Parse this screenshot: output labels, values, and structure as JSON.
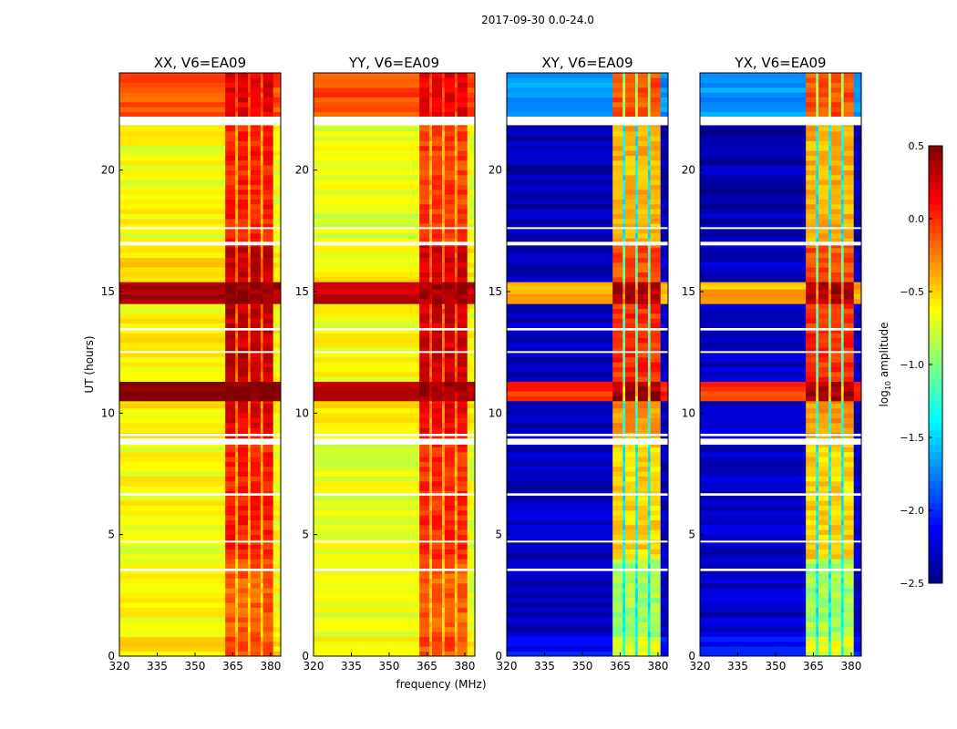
{
  "chart_data": {
    "type": "heatmap",
    "title": "2017-09-30 0.0-24.0",
    "xlabel": "frequency (MHz)",
    "ylabel": "UT (hours)",
    "xlim": [
      320,
      384
    ],
    "ylim": [
      0,
      24
    ],
    "xticks": [
      "320",
      "335",
      "350",
      "365",
      "380"
    ],
    "yticks": [
      "0",
      "5",
      "10",
      "15",
      "20"
    ],
    "colorbar": {
      "label": "log10 amplitude",
      "label_main": "log",
      "label_sub": "10",
      "label_rest": " amplitude",
      "range": [
        -2.5,
        0.5
      ],
      "ticks": [
        "0.5",
        "0.0",
        "−0.5",
        "−1.0",
        "−1.5",
        "−2.0",
        "−2.5"
      ],
      "colormap": "jet"
    },
    "freq_bands": [
      [
        320,
        362
      ],
      [
        362,
        366
      ],
      [
        366,
        367
      ],
      [
        367,
        371
      ],
      [
        371,
        372
      ],
      [
        372,
        376
      ],
      [
        376,
        377
      ],
      [
        377,
        381
      ],
      [
        381,
        384
      ]
    ],
    "band_kind": [
      "low",
      "high",
      "gap",
      "high",
      "gap",
      "high",
      "gap",
      "high",
      "low"
    ],
    "flagged_hours": [
      [
        21.85,
        22.2
      ],
      [
        8.7,
        8.95
      ],
      [
        9.05,
        9.15
      ],
      [
        16.9,
        17.05
      ],
      [
        3.5,
        3.6
      ],
      [
        6.6,
        6.7
      ],
      [
        13.4,
        13.5
      ],
      [
        12.5,
        12.55
      ],
      [
        17.6,
        17.65
      ],
      [
        4.7,
        4.75
      ]
    ],
    "panels": [
      {
        "title": "XX, V6=EA09",
        "segments": [
          {
            "t": [
              0,
              0.8
            ],
            "low": -0.5,
            "high": -0.1,
            "gap": -0.4
          },
          {
            "t": [
              0.8,
              4
            ],
            "low": -0.65,
            "high": -0.15,
            "gap": -0.5
          },
          {
            "t": [
              4,
              9
            ],
            "low": -0.65,
            "high": 0.05,
            "gap": -0.4
          },
          {
            "t": [
              9,
              10.5
            ],
            "low": -0.6,
            "high": 0.2,
            "gap": -0.3
          },
          {
            "t": [
              10.5,
              11.3
            ],
            "low": 0.5,
            "high": 0.5,
            "gap": 0.5
          },
          {
            "t": [
              11.3,
              14.5
            ],
            "low": -0.6,
            "high": 0.3,
            "gap": -0.2
          },
          {
            "t": [
              14.5,
              15.4
            ],
            "low": 0.4,
            "high": 0.45,
            "gap": 0.4
          },
          {
            "t": [
              15.4,
              17
            ],
            "low": -0.55,
            "high": 0.3,
            "gap": -0.2
          },
          {
            "t": [
              17,
              21.85
            ],
            "low": -0.65,
            "high": 0.05,
            "gap": -0.4
          },
          {
            "t": [
              22.2,
              24
            ],
            "low": -0.1,
            "high": 0.2,
            "gap": -0.1
          }
        ]
      },
      {
        "title": "YY, V6=EA09",
        "segments": [
          {
            "t": [
              0,
              0.8
            ],
            "low": -0.55,
            "high": -0.1,
            "gap": -0.4
          },
          {
            "t": [
              0.8,
              4
            ],
            "low": -0.7,
            "high": -0.15,
            "gap": -0.5
          },
          {
            "t": [
              4,
              9
            ],
            "low": -0.7,
            "high": 0.0,
            "gap": -0.4
          },
          {
            "t": [
              9,
              10.5
            ],
            "low": -0.6,
            "high": 0.15,
            "gap": -0.3
          },
          {
            "t": [
              10.5,
              11.3
            ],
            "low": 0.3,
            "high": 0.4,
            "gap": 0.3
          },
          {
            "t": [
              11.3,
              14.5
            ],
            "low": -0.65,
            "high": 0.25,
            "gap": -0.2
          },
          {
            "t": [
              14.5,
              15.4
            ],
            "low": 0.3,
            "high": 0.4,
            "gap": 0.3
          },
          {
            "t": [
              15.4,
              17
            ],
            "low": -0.6,
            "high": 0.25,
            "gap": -0.2
          },
          {
            "t": [
              17,
              21.85
            ],
            "low": -0.7,
            "high": -0.05,
            "gap": -0.4
          },
          {
            "t": [
              22.2,
              24
            ],
            "low": -0.1,
            "high": 0.2,
            "gap": -0.1
          }
        ]
      },
      {
        "title": "XY, V6=EA09",
        "segments": [
          {
            "t": [
              0,
              0.8
            ],
            "low": -2.1,
            "high": -0.7,
            "gap": -1.3
          },
          {
            "t": [
              0.8,
              4
            ],
            "low": -2.3,
            "high": -0.9,
            "gap": -1.4
          },
          {
            "t": [
              4,
              9
            ],
            "low": -2.3,
            "high": -0.5,
            "gap": -1.4
          },
          {
            "t": [
              9,
              10.5
            ],
            "low": -2.3,
            "high": -0.3,
            "gap": -1.3
          },
          {
            "t": [
              10.5,
              11.3
            ],
            "low": 0.0,
            "high": 0.4,
            "gap": -0.5
          },
          {
            "t": [
              11.3,
              14.5
            ],
            "low": -2.3,
            "high": 0.0,
            "gap": -1.1
          },
          {
            "t": [
              14.5,
              15.4
            ],
            "low": -0.4,
            "high": 0.4,
            "gap": -0.3
          },
          {
            "t": [
              15.4,
              17
            ],
            "low": -2.3,
            "high": -0.1,
            "gap": -1.1
          },
          {
            "t": [
              17,
              21.85
            ],
            "low": -2.35,
            "high": -0.4,
            "gap": -1.4
          },
          {
            "t": [
              22.2,
              24
            ],
            "low": -1.7,
            "high": -0.1,
            "gap": -0.9
          }
        ]
      },
      {
        "title": "YX, V6=EA09",
        "segments": [
          {
            "t": [
              0,
              0.8
            ],
            "low": -2.1,
            "high": -0.7,
            "gap": -1.3
          },
          {
            "t": [
              0.8,
              4
            ],
            "low": -2.3,
            "high": -0.9,
            "gap": -1.4
          },
          {
            "t": [
              4,
              9
            ],
            "low": -2.3,
            "high": -0.5,
            "gap": -1.4
          },
          {
            "t": [
              9,
              10.5
            ],
            "low": -2.3,
            "high": -0.3,
            "gap": -1.3
          },
          {
            "t": [
              10.5,
              11.3
            ],
            "low": 0.0,
            "high": 0.4,
            "gap": -0.5
          },
          {
            "t": [
              11.3,
              14.5
            ],
            "low": -2.3,
            "high": 0.0,
            "gap": -1.1
          },
          {
            "t": [
              14.5,
              15.4
            ],
            "low": -0.4,
            "high": 0.4,
            "gap": -0.3
          },
          {
            "t": [
              15.4,
              17
            ],
            "low": -2.3,
            "high": -0.1,
            "gap": -1.1
          },
          {
            "t": [
              17,
              21.85
            ],
            "low": -2.35,
            "high": -0.4,
            "gap": -1.4
          },
          {
            "t": [
              22.2,
              24
            ],
            "low": -1.7,
            "high": -0.1,
            "gap": -0.9
          }
        ]
      }
    ]
  }
}
